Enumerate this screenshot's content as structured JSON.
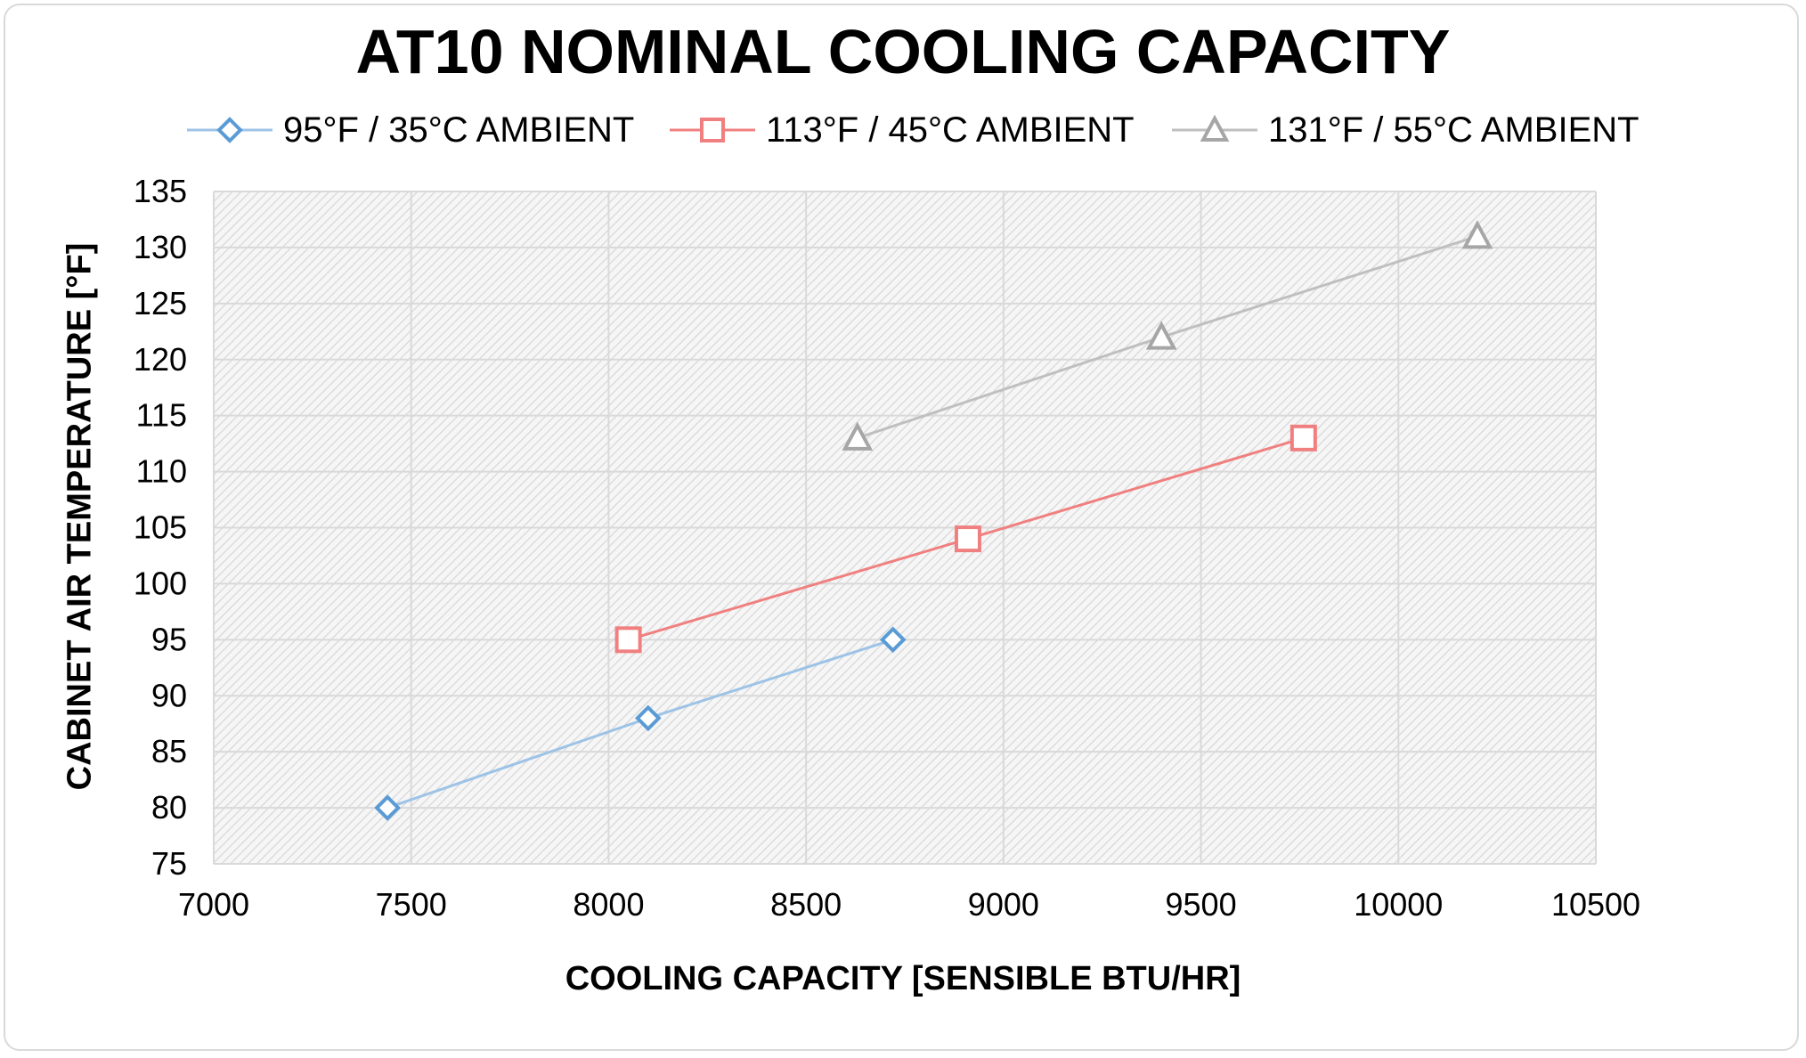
{
  "chart_data": {
    "type": "scatter",
    "title": "AT10 NOMINAL COOLING CAPACITY",
    "xlabel": "COOLING CAPACITY [SENSIBLE BTU/HR]",
    "ylabel": "CABINET AIR TEMPERATURE  [°F]",
    "xlim": [
      7000,
      10500
    ],
    "ylim": [
      75,
      135
    ],
    "x_ticks": [
      "7000",
      "7500",
      "8000",
      "8500",
      "9000",
      "9500",
      "10000",
      "10500"
    ],
    "y_ticks": [
      "75",
      "80",
      "85",
      "90",
      "95",
      "100",
      "105",
      "110",
      "115",
      "120",
      "125",
      "130",
      "135"
    ],
    "grid": true,
    "legend_position": "top",
    "series": [
      {
        "name": "95°F / 35°C AMBIENT",
        "color": "#9dc3e6",
        "marker_color": "#5b9bd5",
        "marker": "diamond",
        "points": [
          [
            7440,
            80
          ],
          [
            8100,
            88
          ],
          [
            8720,
            95
          ]
        ]
      },
      {
        "name": "113°F / 45°C AMBIENT",
        "color": "#f08080",
        "marker_color": "#f08080",
        "marker": "square",
        "points": [
          [
            8050,
            95
          ],
          [
            8910,
            104
          ],
          [
            9760,
            113
          ]
        ]
      },
      {
        "name": "131°F / 55°C AMBIENT",
        "color": "#bfbfbf",
        "marker_color": "#a6a6a6",
        "marker": "triangle",
        "points": [
          [
            8630,
            113
          ],
          [
            9400,
            122
          ],
          [
            10200,
            131
          ]
        ]
      }
    ]
  }
}
